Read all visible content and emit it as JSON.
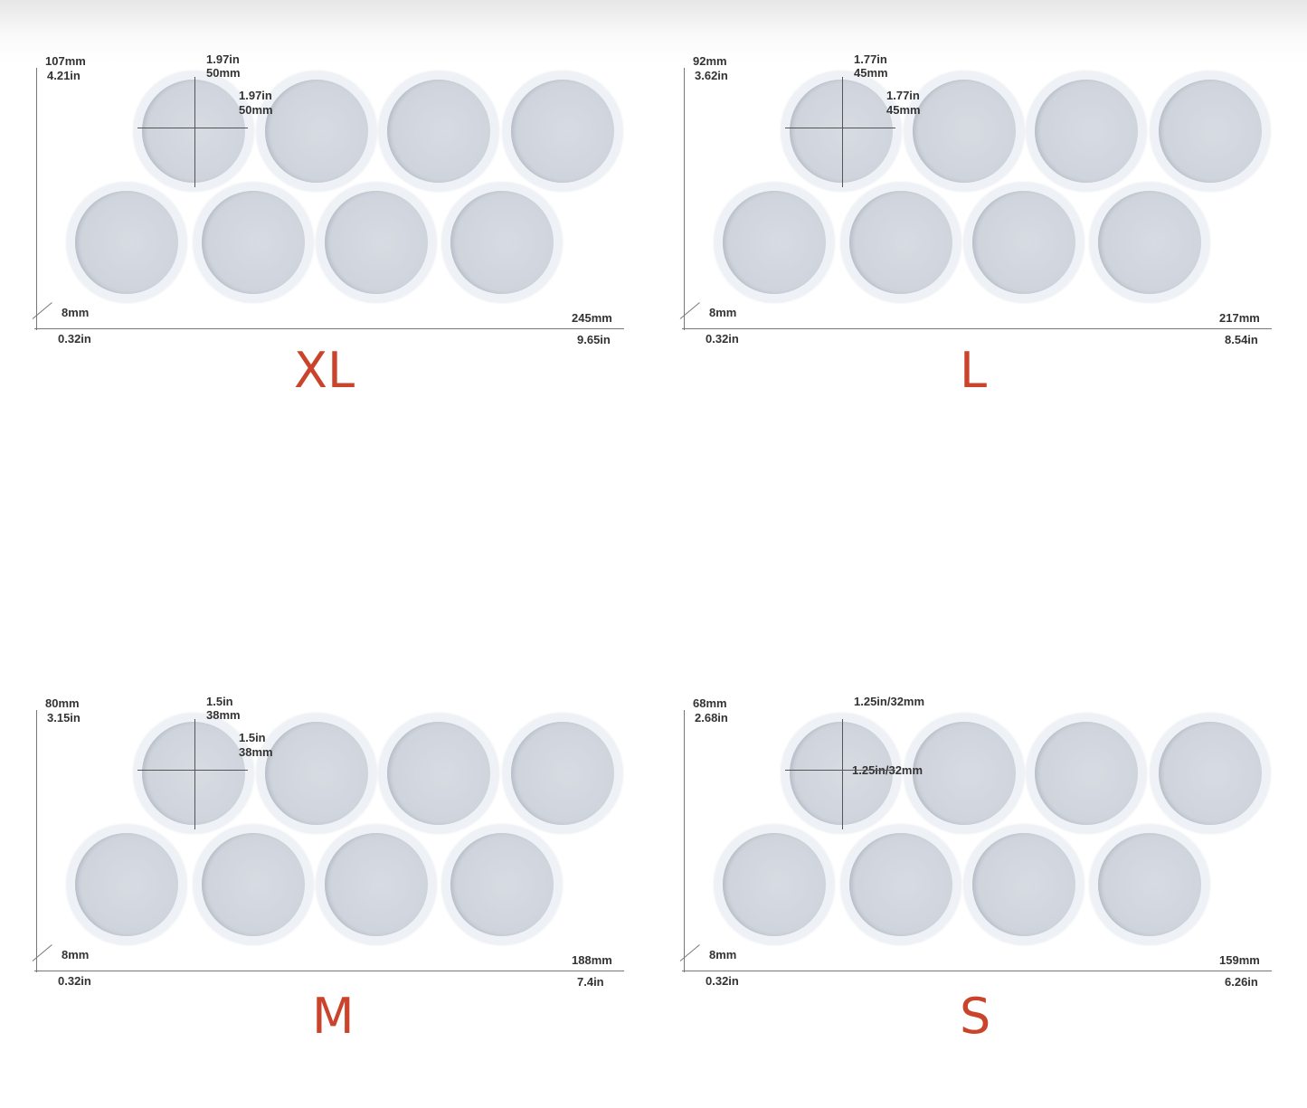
{
  "accent_color": "#c9442b",
  "panels": [
    {
      "size": "XL",
      "height_mm": "107mm",
      "height_in": "4.21in",
      "dim1_a": "1.97in",
      "dim1_b": "50mm",
      "dim2_a": "1.97in",
      "dim2_b": "50mm",
      "depth_mm": "8mm",
      "depth_in": "0.32in",
      "width_mm": "245mm",
      "width_in": "9.65in"
    },
    {
      "size": "L",
      "height_mm": "92mm",
      "height_in": "3.62in",
      "dim1_a": "1.77in",
      "dim1_b": "45mm",
      "dim2_a": "1.77in",
      "dim2_b": "45mm",
      "depth_mm": "8mm",
      "depth_in": "0.32in",
      "width_mm": "217mm",
      "width_in": "8.54in"
    },
    {
      "size": "M",
      "height_mm": "80mm",
      "height_in": "3.15in",
      "dim1_a": "1.5in",
      "dim1_b": "38mm",
      "dim2_a": "1.5in",
      "dim2_b": "38mm",
      "depth_mm": "8mm",
      "depth_in": "0.32in",
      "width_mm": "188mm",
      "width_in": "7.4in"
    },
    {
      "size": "S",
      "height_mm": "68mm",
      "height_in": "2.68in",
      "dim1_a": "1.25in/32mm",
      "dim1_b": "",
      "dim2_a": "1.25in/32mm",
      "dim2_b": "",
      "depth_mm": "8mm",
      "depth_in": "0.32in",
      "width_mm": "159mm",
      "width_in": "6.26in"
    }
  ]
}
